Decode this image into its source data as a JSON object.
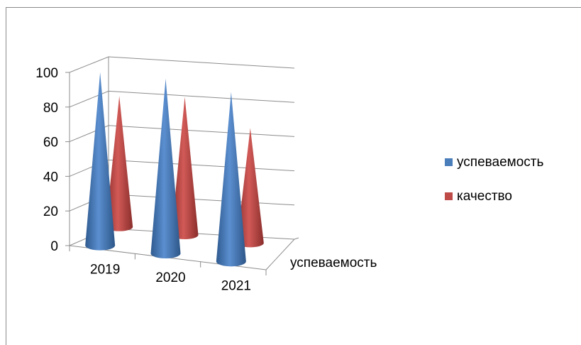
{
  "chart_data": {
    "type": "bar",
    "shape": "3d-cone",
    "categories": [
      "2019",
      "2020",
      "2021"
    ],
    "series": [
      {
        "name": "успеваемость",
        "color": "#4a7ebb",
        "values": [
          97,
          98,
          95
        ]
      },
      {
        "name": "качество",
        "color": "#be4b48",
        "values": [
          74,
          78,
          65
        ]
      }
    ],
    "depth_axis_label": "успеваемость",
    "y_ticks": [
      "0",
      "20",
      "40",
      "60",
      "80",
      "100"
    ],
    "ylim": [
      0,
      100
    ],
    "gridlines": true,
    "legend_position": "right"
  }
}
